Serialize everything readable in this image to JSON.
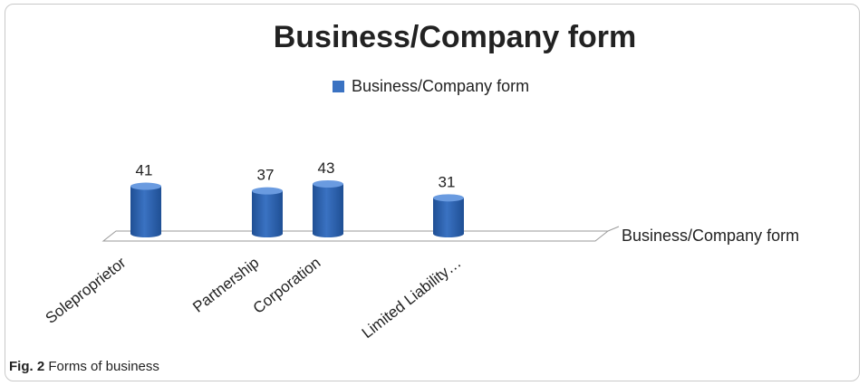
{
  "chart_data": {
    "type": "bar",
    "style": "3d-cylinder",
    "title": "Business/Company form",
    "categories": [
      "Soleproprietor",
      "Partnership",
      "Corporation",
      "Limited Liability…"
    ],
    "series": [
      {
        "name": "Business/Company form",
        "values": [
          41,
          37,
          43,
          31
        ],
        "color": "#3a72c2"
      }
    ],
    "data_labels": [
      "41",
      "37",
      "43",
      "31"
    ],
    "xlabel": "Business/Company form",
    "ylim": [
      0,
      43
    ],
    "legend": "top-center",
    "grid": false,
    "colors": {
      "bar": "#3a72c2",
      "bar_dark": "#1f4f94",
      "bar_top": "#6a9be0",
      "text": "#222222"
    }
  },
  "caption": {
    "label": "Fig. 2",
    "text": "Forms of business"
  }
}
